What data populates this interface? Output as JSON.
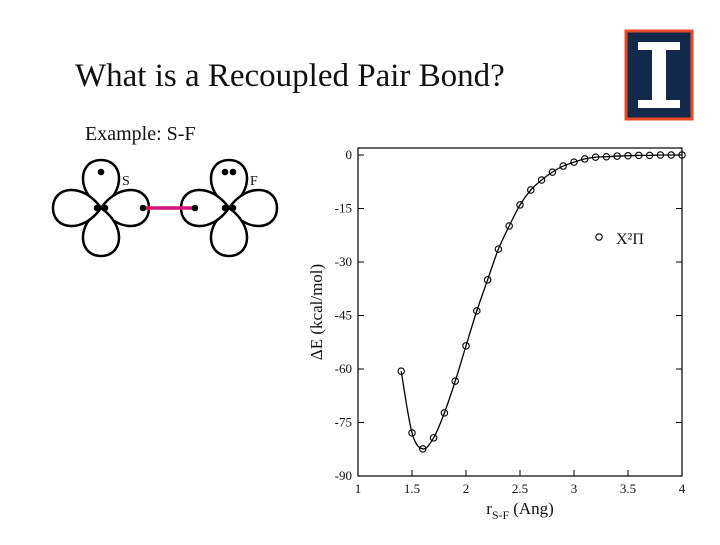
{
  "title": "What is a Recoupled Pair Bond?",
  "example": "Example: S-F",
  "diagram": {
    "atoms": [
      "S",
      "F"
    ]
  },
  "chart_data": {
    "type": "scatter",
    "y_label": "ΔE (kcal/mol)",
    "x_label": {
      "symbol": "r",
      "subscript": "S-F",
      "unit": "(Ang)"
    },
    "x": [
      1.4,
      1.5,
      1.6,
      1.7,
      1.8,
      1.9,
      2.0,
      2.1,
      2.2,
      2.3,
      2.4,
      2.5,
      2.6,
      2.7,
      2.8,
      2.9,
      3.0,
      3.1,
      3.2,
      3.3,
      3.4,
      3.5,
      3.6,
      3.7,
      3.8,
      3.9,
      4.0
    ],
    "series": [
      {
        "name": "X²Π",
        "color": "#000000",
        "values": [
          -60.6,
          -77.9,
          -82.4,
          -79.3,
          -72.3,
          -63.4,
          -53.5,
          -43.7,
          -35.0,
          -26.4,
          -19.9,
          -14.0,
          -9.8,
          -7.0,
          -4.8,
          -3.1,
          -2.0,
          -1.1,
          -0.6,
          -0.5,
          -0.3,
          -0.2,
          -0.1,
          -0.1,
          0,
          0,
          0
        ]
      }
    ],
    "xlim": [
      1,
      4
    ],
    "ylim": [
      -90,
      0
    ],
    "xticks": [
      1,
      1.5,
      2,
      2.5,
      3,
      3.5,
      4
    ],
    "yticks": [
      0,
      -15,
      -30,
      -45,
      -60,
      -75,
      -90
    ],
    "legend": "upper right"
  }
}
